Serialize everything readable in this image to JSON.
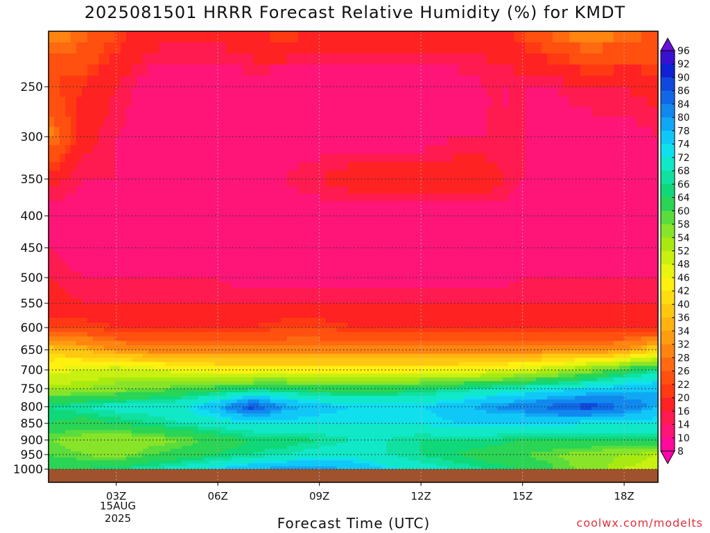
{
  "title": "2025081501 HRRR Forecast Relative Humidity (%) for KMDT",
  "xlabel": "Forecast Time (UTC)",
  "credit": "coolwx.com/modelts",
  "date_line1": "15AUG",
  "date_line2": "2025",
  "colors": {
    "ground": "#a0522d",
    "grid": "#333333",
    "frame": "#000000"
  },
  "chart_data": {
    "type": "heatmap",
    "title": "2025081501 HRRR Forecast Relative Humidity (%) for KMDT",
    "xlabel": "Forecast Time (UTC)",
    "ylabel": "",
    "x_ticks": [
      "03Z",
      "06Z",
      "09Z",
      "12Z",
      "15Z",
      "18Z"
    ],
    "x_tick_hours": [
      3,
      6,
      9,
      12,
      15,
      18
    ],
    "xlim": [
      1,
      19
    ],
    "y_ticks": [
      250,
      300,
      350,
      400,
      450,
      500,
      550,
      600,
      650,
      700,
      750,
      800,
      850,
      900,
      950,
      1000
    ],
    "ylim": [
      1000,
      200
    ],
    "y_axis": "pressure (hPa, top to bottom)",
    "surface_pressure": 1000,
    "colorbar_levels": [
      8,
      10,
      14,
      16,
      20,
      22,
      26,
      28,
      32,
      34,
      36,
      40,
      42,
      46,
      48,
      52,
      54,
      58,
      60,
      64,
      66,
      68,
      72,
      74,
      78,
      80,
      84,
      86,
      90,
      92,
      96
    ],
    "colorbar_labels": [
      "96",
      "92",
      "90",
      "86",
      "84",
      "80",
      "78",
      "74",
      "72",
      "68",
      "66",
      "64",
      "60",
      "58",
      "54",
      "52",
      "48",
      "46",
      "42",
      "40",
      "36",
      "34",
      "32",
      "28",
      "26",
      "22",
      "20",
      "16",
      "14",
      "10",
      "8"
    ],
    "colorbar_colors": [
      "#ff00b0",
      "#ff0a9c",
      "#ff1478",
      "#ff1a50",
      "#ff2222",
      "#ff3a12",
      "#ff5010",
      "#ff6a10",
      "#ff8410",
      "#ff9c10",
      "#ffb210",
      "#ffc810",
      "#ffdc10",
      "#fff010",
      "#e8f510",
      "#c8f010",
      "#a8ea10",
      "#88e428",
      "#5adc3c",
      "#2ad454",
      "#10d878",
      "#10e0a0",
      "#10e8c8",
      "#10e0ee",
      "#10c8f8",
      "#10a8f4",
      "#1088ee",
      "#1068e8",
      "#1048de",
      "#1020d4",
      "#3a10d0",
      "#6a10d8"
    ],
    "x_hours": [
      1,
      2,
      3,
      4,
      5,
      6,
      7,
      8,
      9,
      10,
      11,
      12,
      13,
      14,
      15,
      16,
      17,
      18,
      19
    ],
    "pressure_levels": [
      200,
      250,
      300,
      350,
      400,
      450,
      500,
      550,
      600,
      650,
      700,
      750,
      800,
      850,
      900,
      950,
      1000
    ],
    "values": [
      [
        30,
        28,
        22,
        18,
        18,
        18,
        20,
        22,
        20,
        18,
        18,
        18,
        18,
        18,
        22,
        28,
        32,
        28,
        26
      ],
      [
        22,
        20,
        16,
        12,
        10,
        10,
        12,
        10,
        10,
        12,
        12,
        12,
        12,
        14,
        14,
        14,
        16,
        16,
        18
      ],
      [
        30,
        18,
        14,
        12,
        12,
        12,
        12,
        12,
        12,
        12,
        12,
        12,
        14,
        14,
        14,
        12,
        12,
        12,
        14
      ],
      [
        18,
        14,
        14,
        14,
        14,
        14,
        14,
        14,
        16,
        18,
        18,
        18,
        18,
        18,
        14,
        12,
        12,
        14,
        14
      ],
      [
        12,
        12,
        12,
        12,
        12,
        12,
        12,
        12,
        12,
        12,
        12,
        12,
        12,
        12,
        12,
        12,
        12,
        12,
        12
      ],
      [
        14,
        12,
        12,
        12,
        10,
        10,
        10,
        10,
        10,
        10,
        10,
        10,
        10,
        12,
        12,
        12,
        12,
        12,
        12
      ],
      [
        16,
        14,
        14,
        14,
        14,
        14,
        12,
        12,
        12,
        12,
        12,
        12,
        12,
        12,
        14,
        14,
        14,
        14,
        14
      ],
      [
        18,
        16,
        16,
        16,
        16,
        16,
        16,
        16,
        16,
        16,
        16,
        16,
        16,
        16,
        16,
        16,
        16,
        16,
        16
      ],
      [
        22,
        22,
        20,
        20,
        20,
        20,
        20,
        22,
        22,
        20,
        20,
        20,
        20,
        20,
        20,
        20,
        20,
        20,
        20
      ],
      [
        38,
        36,
        32,
        30,
        30,
        30,
        30,
        30,
        30,
        30,
        30,
        30,
        30,
        30,
        30,
        30,
        30,
        32,
        40
      ],
      [
        46,
        48,
        50,
        48,
        46,
        44,
        44,
        44,
        44,
        44,
        44,
        44,
        44,
        46,
        48,
        52,
        56,
        62,
        66
      ],
      [
        54,
        54,
        56,
        58,
        60,
        62,
        64,
        64,
        62,
        62,
        62,
        64,
        66,
        68,
        70,
        72,
        74,
        76,
        78
      ],
      [
        66,
        68,
        70,
        70,
        72,
        78,
        88,
        80,
        76,
        74,
        74,
        74,
        76,
        80,
        82,
        86,
        88,
        84,
        78
      ],
      [
        64,
        62,
        64,
        66,
        68,
        70,
        72,
        72,
        72,
        72,
        72,
        72,
        74,
        74,
        74,
        74,
        72,
        72,
        72
      ],
      [
        58,
        56,
        54,
        56,
        58,
        62,
        64,
        64,
        66,
        68,
        68,
        66,
        66,
        66,
        64,
        64,
        64,
        64,
        64
      ],
      [
        60,
        58,
        56,
        60,
        62,
        64,
        66,
        68,
        70,
        70,
        68,
        66,
        64,
        62,
        60,
        58,
        56,
        54,
        52
      ],
      [
        64,
        64,
        66,
        68,
        70,
        74,
        78,
        80,
        80,
        78,
        74,
        70,
        68,
        66,
        64,
        60,
        56,
        52,
        50
      ]
    ]
  }
}
